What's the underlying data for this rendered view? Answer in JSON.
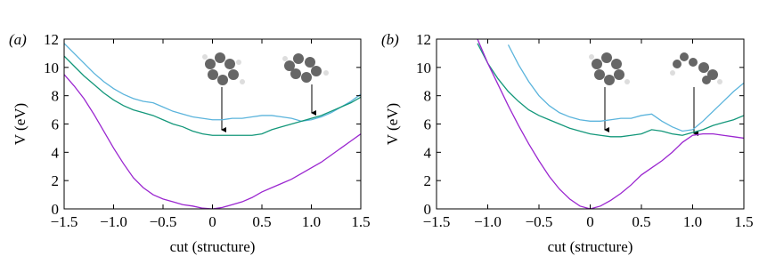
{
  "chart_data": [
    {
      "type": "line",
      "panel_label": "(a)",
      "xlabel": "cut (structure)",
      "ylabel": "V (eV)",
      "x": [
        -1.5,
        -1.4,
        -1.3,
        -1.2,
        -1.1,
        -1.0,
        -0.9,
        -0.8,
        -0.7,
        -0.6,
        -0.5,
        -0.4,
        -0.3,
        -0.2,
        -0.1,
        0,
        0.1,
        0.2,
        0.3,
        0.4,
        0.5,
        0.6,
        0.7,
        0.8,
        0.9,
        1.0,
        1.1,
        1.2,
        1.3,
        1.4,
        1.5
      ],
      "xlim": [
        -1.5,
        1.5
      ],
      "ylim": [
        0,
        12
      ],
      "xticks": [
        {
          "value": -1.5,
          "label": "−1.5"
        },
        {
          "value": -1.0,
          "label": "−1.0"
        },
        {
          "value": -0.5,
          "label": "−0.5"
        },
        0,
        0.5,
        {
          "value": 1.0,
          "label": "1.0"
        },
        1.5
      ],
      "yticks": [
        0,
        2,
        4,
        6,
        8,
        10,
        12
      ],
      "series": [
        {
          "color": "#5bb4dc",
          "values": [
            11.7,
            11.0,
            10.3,
            9.6,
            9.0,
            8.5,
            8.1,
            7.8,
            7.6,
            7.5,
            7.2,
            6.9,
            6.7,
            6.5,
            6.4,
            6.3,
            6.3,
            6.4,
            6.4,
            6.5,
            6.6,
            6.6,
            6.5,
            6.4,
            6.2,
            6.3,
            6.5,
            6.8,
            7.2,
            7.6,
            8.1
          ]
        },
        {
          "color": "#13977a",
          "values": [
            10.8,
            10.1,
            9.4,
            8.8,
            8.2,
            7.7,
            7.3,
            7.0,
            6.8,
            6.6,
            6.3,
            6.0,
            5.8,
            5.5,
            5.3,
            5.2,
            5.2,
            5.2,
            5.2,
            5.2,
            5.3,
            5.6,
            5.8,
            6.0,
            6.2,
            6.4,
            6.6,
            6.9,
            7.2,
            7.5,
            7.9
          ]
        },
        {
          "color": "#9b27d0",
          "values": [
            9.5,
            8.7,
            7.8,
            6.7,
            5.5,
            4.3,
            3.2,
            2.2,
            1.5,
            1.0,
            0.7,
            0.5,
            0.3,
            0.2,
            0.05,
            0.0,
            0.1,
            0.3,
            0.5,
            0.8,
            1.2,
            1.5,
            1.8,
            2.1,
            2.5,
            2.9,
            3.3,
            3.8,
            4.3,
            4.8,
            5.3
          ]
        }
      ]
    },
    {
      "type": "line",
      "panel_label": "(b)",
      "xlabel": "cut (structure)",
      "ylabel": "V (eV)",
      "x": [
        -1.5,
        -1.4,
        -1.3,
        -1.2,
        -1.1,
        -1.0,
        -0.9,
        -0.8,
        -0.7,
        -0.6,
        -0.5,
        -0.4,
        -0.3,
        -0.2,
        -0.1,
        0,
        0.1,
        0.2,
        0.3,
        0.4,
        0.5,
        0.6,
        0.7,
        0.8,
        0.9,
        1.0,
        1.1,
        1.2,
        1.3,
        1.4,
        1.5
      ],
      "xlim": [
        -1.5,
        1.5
      ],
      "ylim": [
        0,
        12
      ],
      "xticks": [
        {
          "value": -1.5,
          "label": "−1.5"
        },
        {
          "value": -1.0,
          "label": "−1.0"
        },
        {
          "value": -0.5,
          "label": "−0.5"
        },
        0,
        0.5,
        {
          "value": 1.0,
          "label": "1.0"
        },
        1.5
      ],
      "yticks": [
        0,
        2,
        4,
        6,
        8,
        10,
        12
      ],
      "series": [
        {
          "color": "#5bb4dc",
          "values": [
            null,
            null,
            null,
            null,
            null,
            null,
            null,
            11.6,
            10.2,
            9.0,
            8.0,
            7.3,
            6.8,
            6.5,
            6.3,
            6.2,
            6.2,
            6.3,
            6.4,
            6.4,
            6.6,
            6.7,
            6.2,
            5.8,
            5.5,
            5.6,
            6.2,
            6.9,
            7.6,
            8.3,
            8.9
          ]
        },
        {
          "color": "#13977a",
          "values": [
            null,
            null,
            null,
            null,
            11.7,
            10.3,
            9.2,
            8.3,
            7.6,
            7.0,
            6.6,
            6.3,
            6.0,
            5.7,
            5.5,
            5.3,
            5.2,
            5.1,
            5.1,
            5.2,
            5.3,
            5.6,
            5.5,
            5.3,
            5.2,
            5.4,
            5.6,
            5.9,
            6.1,
            6.3,
            6.6
          ]
        },
        {
          "color": "#9b27d0",
          "values": [
            null,
            null,
            null,
            null,
            12.0,
            10.3,
            8.8,
            7.3,
            5.9,
            4.6,
            3.4,
            2.3,
            1.4,
            0.7,
            0.2,
            0.0,
            0.2,
            0.6,
            1.1,
            1.7,
            2.4,
            2.9,
            3.4,
            4.0,
            4.7,
            5.2,
            5.3,
            5.3,
            5.2,
            5.1,
            5.0
          ]
        }
      ]
    }
  ]
}
